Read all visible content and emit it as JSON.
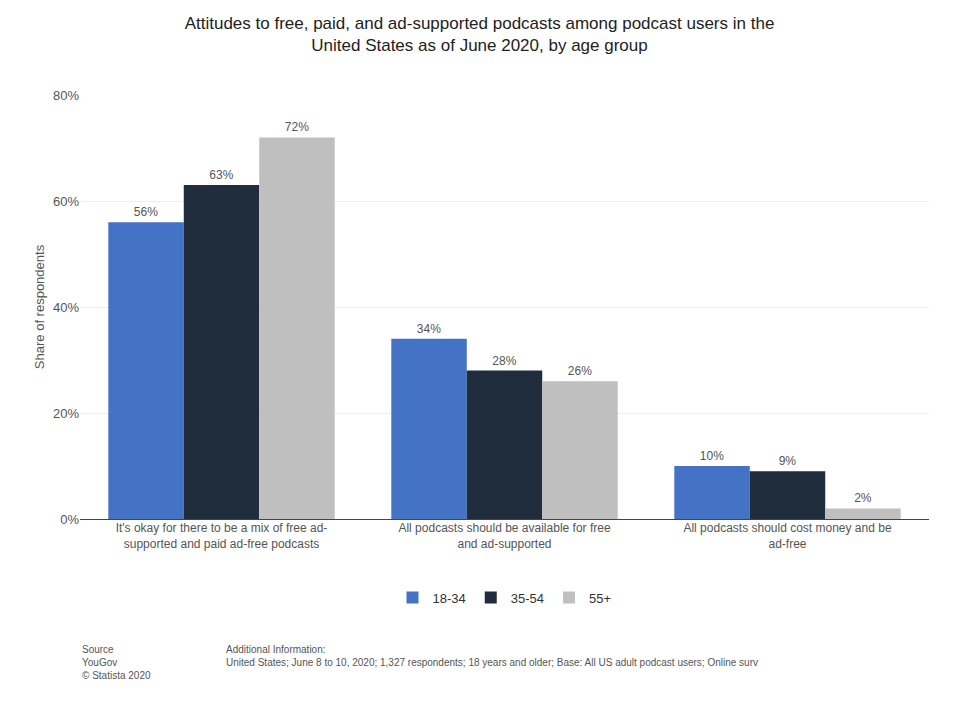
{
  "chart_data": {
    "type": "bar",
    "title": "Attitudes to free, paid, and ad-supported podcasts among podcast users in the\nUnited States as of June 2020, by age group",
    "categories": [
      "It's okay for there to be a mix of free ad-\nsupported and paid ad-free podcasts",
      "All podcasts should be available for free\nand ad-supported",
      "All podcasts should cost money and be\nad-free"
    ],
    "series": [
      {
        "name": "18-34",
        "color": "#4472C4",
        "values": [
          56,
          34,
          10
        ],
        "value_labels": [
          "56%",
          "34%",
          "10%"
        ]
      },
      {
        "name": "35-54",
        "color": "#1F2D3D",
        "values": [
          63,
          28,
          9
        ],
        "value_labels": [
          "63%",
          "28%",
          "9%"
        ]
      },
      {
        "name": "55+",
        "color": "#BFBFBF",
        "values": [
          72,
          26,
          2
        ],
        "value_labels": [
          "72%",
          "26%",
          "2%"
        ]
      }
    ],
    "ylabel": "Share of respondents",
    "ylim": [
      0,
      80
    ],
    "yticks": [
      {
        "value": 0,
        "label": "0%"
      },
      {
        "value": 20,
        "label": "20%"
      },
      {
        "value": 40,
        "label": "40%"
      },
      {
        "value": 60,
        "label": "60%"
      },
      {
        "value": 80,
        "label": "80%"
      }
    ],
    "grid": true,
    "legend": "bottom",
    "data_labels": true,
    "annotations": [
      "Source\nYouGov\n© Statista 2020",
      "Additional Information:\nUnited States; June 8 to 10, 2020; 1,327 respondents; 18 years and older; Base: All US adult podcast users; Online surv"
    ]
  }
}
